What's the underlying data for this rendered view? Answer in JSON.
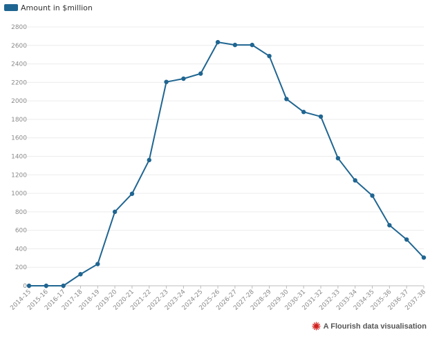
{
  "legend": {
    "label": "Amount in $million",
    "swatch_color": "#1f6591"
  },
  "chart_data": {
    "type": "line",
    "title": "",
    "xlabel": "",
    "ylabel": "",
    "ylim": [
      0,
      2800
    ],
    "yticks": [
      0,
      200,
      400,
      600,
      800,
      1000,
      1200,
      1400,
      1600,
      1800,
      2000,
      2200,
      2400,
      2600,
      2800
    ],
    "grid": true,
    "legend_position": "top-left",
    "categories": [
      "2014-15",
      "2015-16",
      "2016-17",
      "2017-18",
      "2018-19",
      "2019-20",
      "2020-21",
      "2021-22",
      "2022-23",
      "2023-24",
      "2024-25",
      "2025-26",
      "2026-27",
      "2027-28",
      "2028-29",
      "2029-30",
      "2030-31",
      "2031-32",
      "2032-33",
      "2033-34",
      "2034-35",
      "2035-36",
      "2036-37",
      "2037-38"
    ],
    "series": [
      {
        "name": "Amount in $million",
        "color": "#1f6591",
        "values": [
          0,
          0,
          0,
          125,
          235,
          800,
          995,
          1360,
          2205,
          2240,
          2295,
          2635,
          2605,
          2605,
          2485,
          2020,
          1880,
          1830,
          1380,
          1140,
          975,
          655,
          500,
          305
        ]
      }
    ]
  },
  "footer": {
    "text": "A Flourish data visualisation",
    "icon": "flourish-logo-icon",
    "icon_color": "#d0201e"
  }
}
